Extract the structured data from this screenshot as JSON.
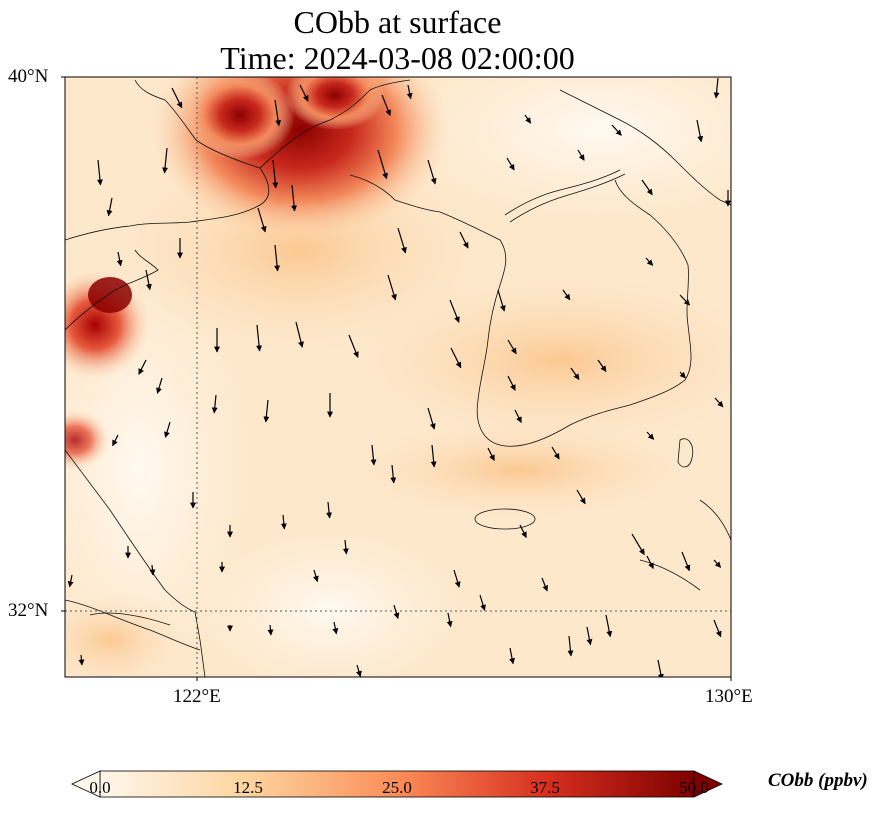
{
  "title": {
    "line1": "CObb at surface",
    "line2": "Time: 2024-03-08 02:00:00"
  },
  "map": {
    "lon_range": [
      120,
      130
    ],
    "lat_range": [
      31,
      40
    ],
    "gridlines": {
      "lon": [
        122
      ],
      "lat": [
        32
      ],
      "style": "dotted"
    },
    "lat_tick_labels": [
      "40°N",
      "32°N"
    ],
    "lon_tick_labels": [
      "122°E",
      "130°E"
    ],
    "field": "CObb",
    "high_concentration_regions": [
      {
        "name": "north plume",
        "level_ppbv": 50
      },
      {
        "name": "west coast plume",
        "level_ppbv": 45
      }
    ]
  },
  "colorbar": {
    "label": "CObb (ppbv)",
    "min": 0,
    "max": 50,
    "tick_labels": [
      "0.0",
      "12.5",
      "25.0",
      "37.5",
      "50.0"
    ],
    "extend": "both",
    "colormap": [
      "#fff7ec",
      "#fdd49e",
      "#fc8d59",
      "#d7301f",
      "#7f0000"
    ]
  },
  "wind_vectors": "downward-southward flow field, arrows shown across the domain"
}
